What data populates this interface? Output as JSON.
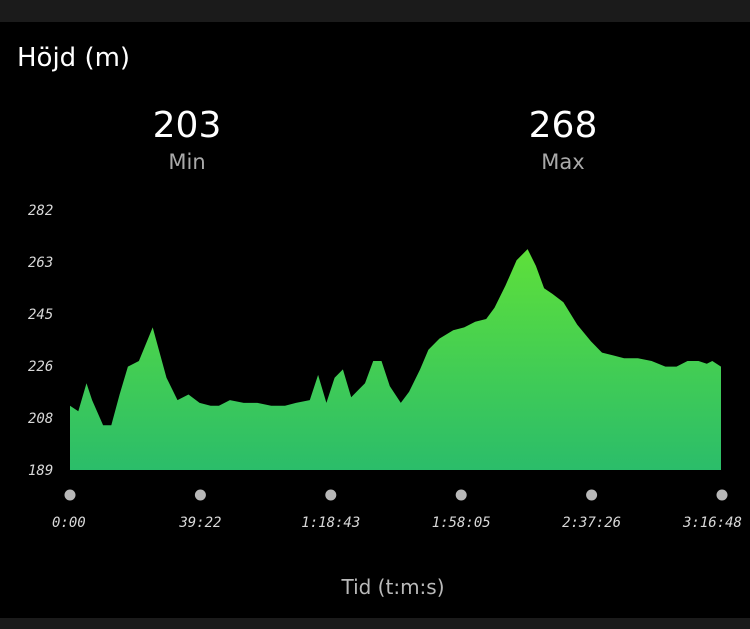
{
  "title": "Höjd (m)",
  "stats": {
    "min": {
      "value": "203",
      "label": "Min"
    },
    "max": {
      "value": "268",
      "label": "Max"
    }
  },
  "colors": {
    "fill_top": "#5ee03a",
    "fill_bottom": "#2bbd6a",
    "dot": "#b8b8b8"
  },
  "chart_data": {
    "type": "area",
    "xlabel": "Tid (t:m:s)",
    "ylabel": "",
    "x_ticks": [
      "0:00",
      "39:22",
      "1:18:43",
      "1:58:05",
      "2:37:26",
      "3:16:48"
    ],
    "y_ticks": [
      "282",
      "263",
      "245",
      "226",
      "208",
      "189"
    ],
    "xlim": [
      0,
      11808
    ],
    "ylim": [
      189,
      282
    ],
    "grid": false,
    "series": [
      {
        "x": [
          0,
          150,
          300,
          400,
          600,
          750,
          900,
          1050,
          1250,
          1500,
          1750,
          1950,
          2150,
          2350,
          2550,
          2700,
          2900,
          3150,
          3400,
          3650,
          3900,
          4100,
          4350,
          4500,
          4650,
          4800,
          4950,
          5100,
          5250,
          5350,
          5500,
          5650,
          5800,
          6000,
          6150,
          6350,
          6500,
          6700,
          6950,
          7150,
          7350,
          7550,
          7700,
          7900,
          8100,
          8300,
          8450,
          8600,
          8750,
          8950,
          9200,
          9450,
          9650,
          9850,
          10050,
          10300,
          10550,
          10800,
          11000,
          11200,
          11400,
          11550,
          11650,
          11808
        ],
        "values": [
          212,
          210,
          220,
          214,
          205,
          205,
          216,
          226,
          228,
          240,
          222,
          214,
          216,
          213,
          212,
          212,
          214,
          213,
          213,
          212,
          212,
          213,
          214,
          223,
          213,
          222,
          225,
          215,
          218,
          220,
          228,
          228,
          219,
          213,
          217,
          225,
          232,
          236,
          239,
          240,
          242,
          243,
          247,
          255,
          264,
          268,
          262,
          254,
          252,
          249,
          241,
          235,
          231,
          230,
          229,
          229,
          228,
          226,
          226,
          228,
          228,
          227,
          228,
          226
        ]
      }
    ]
  }
}
